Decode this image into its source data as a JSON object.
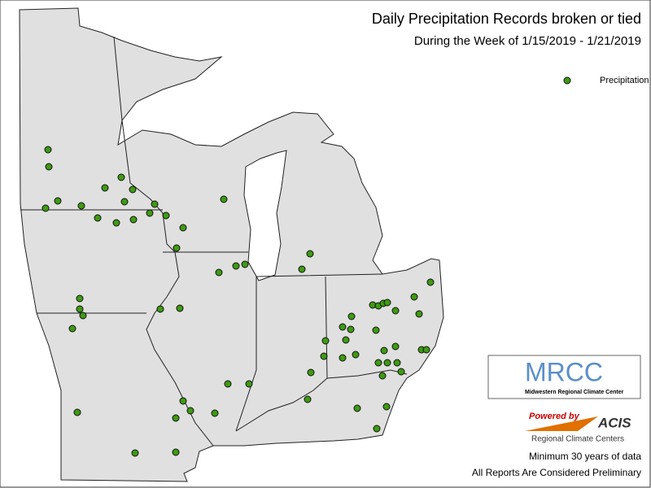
{
  "title": "Daily Precipitation Records broken or tied",
  "subtitle": "During the Week of 1/15/2019 - 1/21/2019",
  "legend": {
    "label": "Precipitation"
  },
  "logos": {
    "mrcc": {
      "name": "MRCC",
      "full_name": "Midwestern Regional Climate Center"
    },
    "acis": {
      "powered_by": "Powered by",
      "name": "ACIS",
      "subtitle": "Regional Climate Centers"
    }
  },
  "notes": [
    "Minimum 30 years of data",
    "All Reports Are Considered Preliminary"
  ]
}
